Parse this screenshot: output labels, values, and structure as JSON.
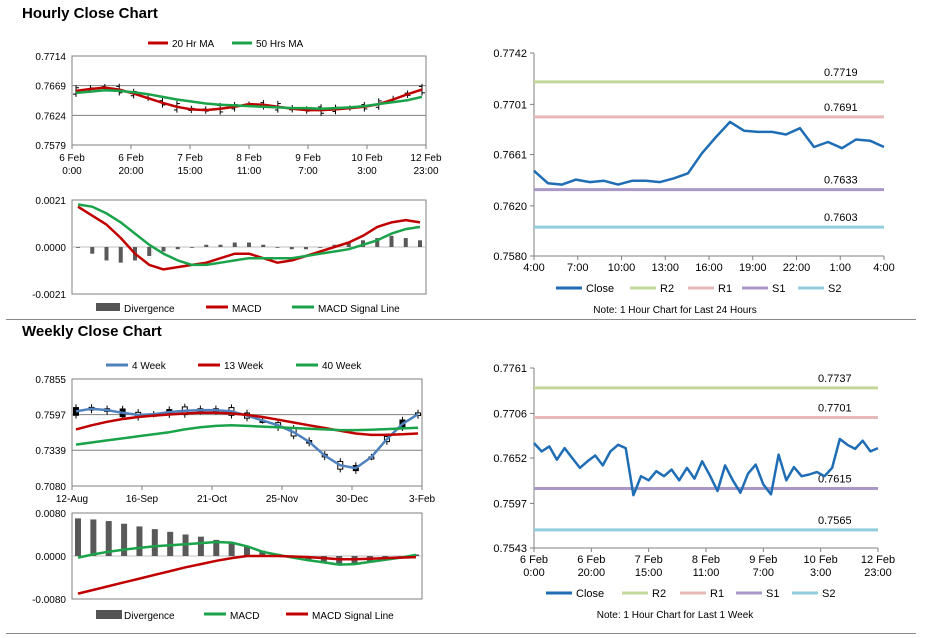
{
  "colors": {
    "ma20": "#c00000",
    "ma50": "#1aa34a",
    "divergence": "#7f7f7f",
    "macd": "#c00000",
    "signal": "#1aa34a",
    "close": "#1f6db4",
    "r2": "#c4d79b",
    "r1": "#e6b9b8",
    "s1": "#a997c6",
    "s2": "#92cddc",
    "w4": "#4f81bd",
    "w13": "#c00000",
    "w40": "#1aa34a",
    "wmacd": "#1aa34a",
    "wsignal": "#c00000"
  },
  "hourly": {
    "title": "Hourly Close Chart",
    "price": {
      "legend": [
        "20 Hr MA",
        "50 Hrs MA"
      ],
      "yticks": [
        "0.7714",
        "0.7669",
        "0.7624",
        "0.7579"
      ],
      "xticks": [
        [
          "6 Feb",
          "0:00"
        ],
        [
          "6 Feb",
          "20:00"
        ],
        [
          "7 Feb",
          "15:00"
        ],
        [
          "8 Feb",
          "11:00"
        ],
        [
          "9 Feb",
          "7:00"
        ],
        [
          "10 Feb",
          "3:00"
        ],
        [
          "12 Feb",
          "23:00"
        ]
      ],
      "ylim": [
        0.7579,
        0.7714
      ]
    },
    "macd": {
      "yticks": [
        "0.0021",
        "0.0000",
        "-0.0021"
      ],
      "legend": [
        "Divergence",
        "MACD",
        "MACD Signal Line"
      ],
      "ylim": [
        -0.0021,
        0.0021
      ]
    },
    "levels_chart": {
      "type": "line",
      "yticks": [
        "0.7742",
        "0.7701",
        "0.7661",
        "0.7620",
        "0.7580"
      ],
      "ylim": [
        0.758,
        0.7742
      ],
      "xticks": [
        "4:00",
        "7:00",
        "10:00",
        "13:00",
        "16:00",
        "19:00",
        "22:00",
        "1:00",
        "4:00"
      ],
      "series": [
        {
          "name": "Close",
          "values": [
            0.7648,
            0.7638,
            0.7637,
            0.7641,
            0.7639,
            0.764,
            0.7637,
            0.764,
            0.764,
            0.7639,
            0.7642,
            0.7646,
            0.7662,
            0.7675,
            0.7687,
            0.768,
            0.7679,
            0.7679,
            0.7677,
            0.7682,
            0.7667,
            0.7671,
            0.7666,
            0.7673,
            0.7672,
            0.7667
          ]
        }
      ],
      "levels": [
        {
          "name": "R2",
          "value": 0.7719,
          "label": "0.7719"
        },
        {
          "name": "R1",
          "value": 0.7691,
          "label": "0.7691"
        },
        {
          "name": "S1",
          "value": 0.7633,
          "label": "0.7633"
        },
        {
          "name": "S2",
          "value": 0.7603,
          "label": "0.7603"
        }
      ],
      "legend": [
        "Close",
        "R2",
        "R1",
        "S1",
        "S2"
      ],
      "note": "Note: 1 Hour Chart for Last 24 Hours"
    }
  },
  "weekly": {
    "title": "Weekly Close Chart",
    "price": {
      "legend": [
        "4 Week",
        "13 Week",
        "40 Week"
      ],
      "yticks": [
        "0.7855",
        "0.7597",
        "0.7339",
        "0.7080"
      ],
      "xticks": [
        "12-Aug",
        "16-Sep",
        "21-Oct",
        "25-Nov",
        "30-Dec",
        "3-Feb"
      ],
      "ylim": [
        0.708,
        0.7855
      ]
    },
    "macd": {
      "yticks": [
        "0.0080",
        "0.0000",
        "-0.0080"
      ],
      "legend": [
        "Divergence",
        "MACD",
        "MACD Signal Line"
      ],
      "ylim": [
        -0.008,
        0.008
      ]
    },
    "levels_chart": {
      "type": "line",
      "yticks": [
        "0.7761",
        "0.7706",
        "0.7652",
        "0.7597",
        "0.7543"
      ],
      "ylim": [
        0.7543,
        0.7761
      ],
      "xticks": [
        [
          "6 Feb",
          "0:00"
        ],
        [
          "6 Feb",
          "20:00"
        ],
        [
          "7 Feb",
          "15:00"
        ],
        [
          "8 Feb",
          "11:00"
        ],
        [
          "9 Feb",
          "7:00"
        ],
        [
          "10 Feb",
          "3:00"
        ],
        [
          "12 Feb",
          "23:00"
        ]
      ],
      "series": [
        {
          "name": "Close",
          "values": [
            0.767,
            0.766,
            0.7666,
            0.765,
            0.7664,
            0.7652,
            0.764,
            0.7648,
            0.7655,
            0.7643,
            0.766,
            0.7668,
            0.7664,
            0.7607,
            0.763,
            0.7625,
            0.7636,
            0.763,
            0.7638,
            0.7625,
            0.764,
            0.7627,
            0.7648,
            0.7631,
            0.7612,
            0.7643,
            0.7625,
            0.761,
            0.7633,
            0.7644,
            0.762,
            0.7608,
            0.7656,
            0.7625,
            0.7641,
            0.763,
            0.7632,
            0.7635,
            0.763,
            0.764,
            0.7675,
            0.7668,
            0.7663,
            0.7673,
            0.766,
            0.7664
          ]
        }
      ],
      "levels": [
        {
          "name": "R2",
          "value": 0.7737,
          "label": "0.7737"
        },
        {
          "name": "R1",
          "value": 0.7701,
          "label": "0.7701"
        },
        {
          "name": "S1",
          "value": 0.7615,
          "label": "0.7615"
        },
        {
          "name": "S2",
          "value": 0.7565,
          "label": "0.7565"
        }
      ],
      "legend": [
        "Close",
        "R2",
        "R1",
        "S1",
        "S2"
      ],
      "note": "Note: 1 Hour Chart for Last 1 Week"
    }
  },
  "chart_data": [
    {
      "type": "line",
      "title": "Hourly Close Chart",
      "yticks": [
        "0.7714",
        "0.7669",
        "0.7624",
        "0.7579"
      ],
      "ylim": [
        0.7579,
        0.7714
      ],
      "series": [
        {
          "name": "20 Hr MA",
          "values": [
            0.7661,
            0.7664,
            0.7666,
            0.7663,
            0.7657,
            0.765,
            0.7643,
            0.7637,
            0.7633,
            0.7632,
            0.7634,
            0.7637,
            0.7641,
            0.764,
            0.7637,
            0.7634,
            0.7632,
            0.7632,
            0.7633,
            0.7635,
            0.7637,
            0.7641,
            0.7648,
            0.7656,
            0.7663
          ]
        },
        {
          "name": "50 Hrs MA",
          "values": [
            0.7658,
            0.766,
            0.7662,
            0.7661,
            0.7659,
            0.7656,
            0.7652,
            0.7648,
            0.7645,
            0.7642,
            0.764,
            0.7639,
            0.7638,
            0.7637,
            0.7636,
            0.7635,
            0.7635,
            0.7634,
            0.7635,
            0.7636,
            0.7638,
            0.7641,
            0.7644,
            0.7647,
            0.7652
          ]
        }
      ]
    },
    {
      "type": "bar",
      "yticks": [
        "0.0021",
        "0.0000",
        "-0.0021"
      ],
      "ylim": [
        -0.0021,
        0.0021
      ],
      "series": [
        {
          "name": "Divergence",
          "values": [
            0.0,
            -0.0003,
            -0.0006,
            -0.0007,
            -0.0006,
            -0.0004,
            -0.0002,
            -0.0001,
            0.0,
            0.0001,
            0.0001,
            0.0002,
            0.0002,
            0.0001,
            0.0,
            -0.0001,
            -0.0001,
            0.0,
            0.0001,
            0.0002,
            0.0003,
            0.0004,
            0.0005,
            0.0004,
            0.0003
          ]
        },
        {
          "name": "MACD",
          "values": [
            0.0018,
            0.0014,
            0.001,
            0.0004,
            -0.0003,
            -0.0008,
            -0.001,
            -0.0009,
            -0.0008,
            -0.0007,
            -0.0005,
            -0.0003,
            -0.0003,
            -0.0005,
            -0.0007,
            -0.0006,
            -0.0004,
            -0.0002,
            0.0,
            0.0002,
            0.0005,
            0.0009,
            0.0011,
            0.0012,
            0.0011
          ]
        },
        {
          "name": "MACD Signal Line",
          "values": [
            0.0019,
            0.0018,
            0.0015,
            0.0011,
            0.0006,
            0.0001,
            -0.0003,
            -0.0006,
            -0.0008,
            -0.0008,
            -0.0007,
            -0.0006,
            -0.0005,
            -0.0005,
            -0.0005,
            -0.0005,
            -0.0004,
            -0.0003,
            -0.0002,
            -0.0001,
            0.0001,
            0.0003,
            0.0006,
            0.0008,
            0.0009
          ]
        }
      ]
    },
    {
      "type": "line",
      "title": "Weekly Close Chart",
      "yticks": [
        "0.7855",
        "0.7597",
        "0.7339",
        "0.7080"
      ],
      "ylim": [
        0.708,
        0.7855
      ],
      "series": [
        {
          "name": "4 Week",
          "values": [
            0.762,
            0.764,
            0.763,
            0.761,
            0.7595,
            0.76,
            0.7615,
            0.7625,
            0.763,
            0.763,
            0.762,
            0.759,
            0.7555,
            0.752,
            0.747,
            0.74,
            0.73,
            0.723,
            0.721,
            0.729,
            0.742,
            0.753,
            0.76
          ]
        },
        {
          "name": "13 Week",
          "values": [
            0.749,
            0.752,
            0.7545,
            0.7565,
            0.758,
            0.759,
            0.7598,
            0.7605,
            0.761,
            0.761,
            0.7605,
            0.7595,
            0.758,
            0.756,
            0.754,
            0.752,
            0.75,
            0.748,
            0.746,
            0.745,
            0.745,
            0.7455,
            0.746
          ]
        },
        {
          "name": "40 Week",
          "values": [
            0.738,
            0.7395,
            0.741,
            0.7425,
            0.744,
            0.7455,
            0.747,
            0.749,
            0.7505,
            0.7515,
            0.752,
            0.7515,
            0.751,
            0.7505,
            0.75,
            0.7495,
            0.749,
            0.7485,
            0.7485,
            0.7488,
            0.7492,
            0.7497,
            0.7502
          ]
        }
      ]
    },
    {
      "type": "bar",
      "yticks": [
        "0.0080",
        "0.0000",
        "-0.0080"
      ],
      "ylim": [
        -0.008,
        0.008
      ],
      "series": [
        {
          "name": "Divergence",
          "values": [
            0.007,
            0.0068,
            0.0065,
            0.006,
            0.0055,
            0.005,
            0.0045,
            0.004,
            0.0036,
            0.003,
            0.0025,
            0.0018,
            0.001,
            0.0004,
            -0.0002,
            -0.0008,
            -0.0012,
            -0.0016,
            -0.0015,
            -0.001,
            -0.0006,
            -0.0002,
            0.0003
          ]
        },
        {
          "name": "MACD",
          "values": [
            -0.0003,
            0.0003,
            0.0008,
            0.0012,
            0.0015,
            0.0018,
            0.002,
            0.0022,
            0.0024,
            0.0026,
            0.0025,
            0.0018,
            0.0008,
            0.0002,
            -0.0003,
            -0.0008,
            -0.0012,
            -0.0016,
            -0.0015,
            -0.0011,
            -0.0007,
            -0.0003,
            0.0002
          ]
        },
        {
          "name": "MACD Signal Line",
          "values": [
            -0.007,
            -0.0063,
            -0.0056,
            -0.0049,
            -0.0042,
            -0.0035,
            -0.0028,
            -0.0021,
            -0.0015,
            -0.0009,
            -0.0004,
            0.0,
            0.0,
            0.0,
            -0.0001,
            -0.0002,
            -0.0004,
            -0.0006,
            -0.0006,
            -0.0005,
            -0.0004,
            -0.0003,
            -0.0002
          ]
        }
      ]
    }
  ]
}
